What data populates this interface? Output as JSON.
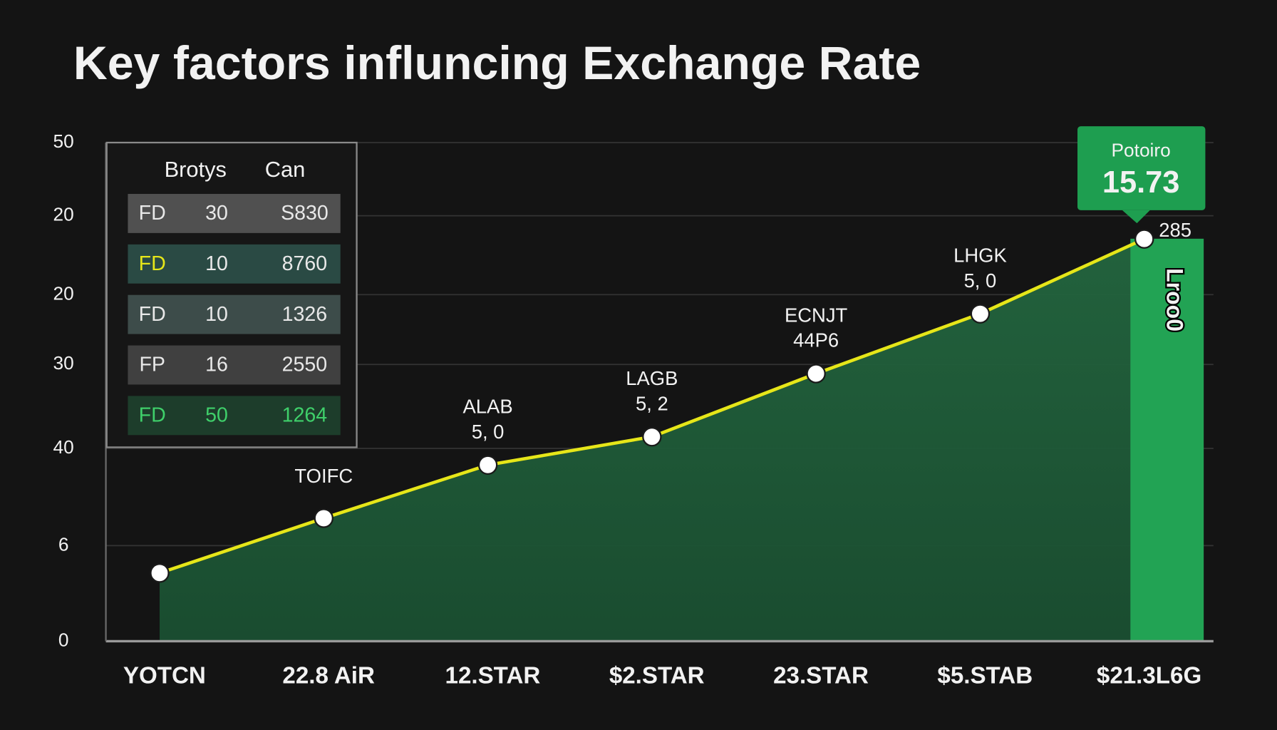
{
  "chart_data": {
    "type": "line",
    "title": "Key factors influncing Exchange Rate",
    "categories": [
      "YOTCN",
      "22.8 AiR",
      "12.STAR",
      "$2.STAR",
      "23.STAR",
      "$5.STAB",
      "$21.3L6G"
    ],
    "values": [
      8.2,
      14.8,
      21.2,
      24.6,
      32.2,
      39.4,
      48.4
    ],
    "color": "#e6e619",
    "point_labels": [
      null,
      "TOIFC",
      "ALAB",
      "LAGB",
      "ECNJT",
      "LHGK",
      null
    ],
    "point_sublabels": [
      null,
      null,
      "5, 0",
      "5, 2",
      "44P6",
      "5, 0",
      "285"
    ],
    "ylim": [
      0,
      60
    ],
    "yticks": [
      0,
      {
        "value": 11.5,
        "label": "6"
      },
      {
        "value": 23.2,
        "label": "40"
      },
      {
        "value": 33.3,
        "label": "30"
      },
      {
        "value": 41.7,
        "label": "20"
      },
      {
        "value": 51.2,
        "label": "20"
      },
      {
        "value": 60,
        "label": "50"
      }
    ],
    "grid": true,
    "callout": {
      "title": "Potoiro",
      "value": "15.73"
    },
    "side_label": "Lroo0",
    "table": {
      "header": [
        "Brotys",
        "Can"
      ],
      "rows": [
        [
          "FD",
          "30",
          "S830"
        ],
        [
          "FD",
          "10",
          "8760"
        ],
        [
          "FD",
          "10",
          "1326"
        ],
        [
          "FP",
          "16",
          "2550"
        ],
        [
          "FD",
          "50",
          "1264"
        ]
      ]
    }
  }
}
